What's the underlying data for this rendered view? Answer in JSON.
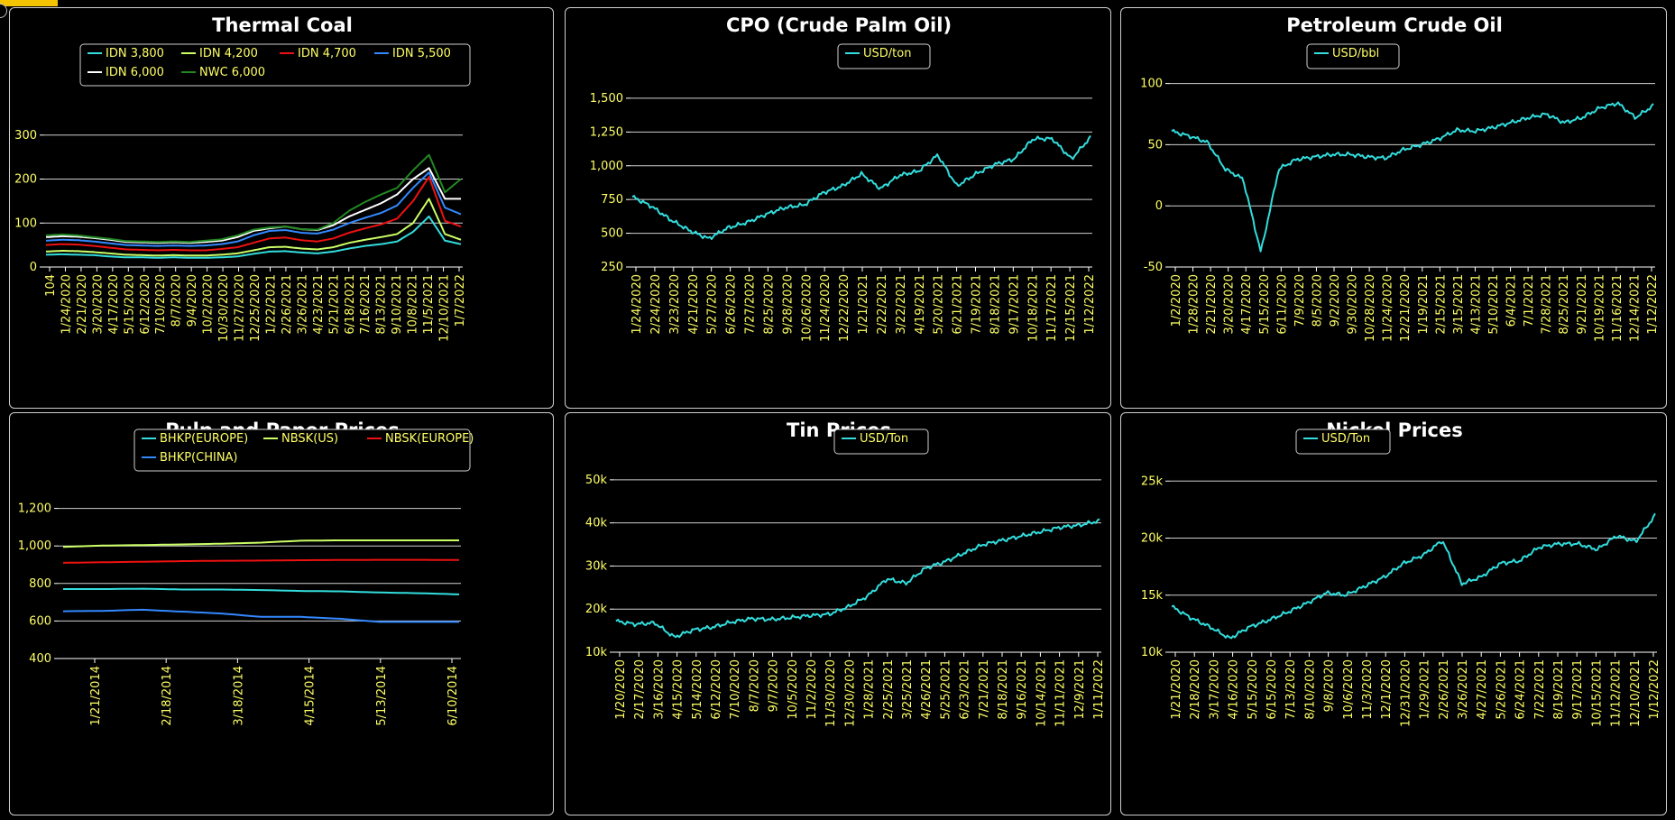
{
  "chart_data": [
    {
      "id": "coal",
      "type": "line",
      "title": "Thermal Coal",
      "ylim": [
        0,
        400
      ],
      "yticks": [
        {
          "v": 0,
          "label": "0"
        },
        {
          "v": 100,
          "label": "100"
        },
        {
          "v": 200,
          "label": "200"
        },
        {
          "v": 300,
          "label": "300"
        }
      ],
      "grid": true,
      "legend": "top-right",
      "x_tick_labels": [
        "104",
        "1/24/2020",
        "2/21/2020",
        "3/20/2020",
        "4/17/2020",
        "5/15/2020",
        "6/12/2020",
        "7/10/2020",
        "8/7/2020",
        "9/4/2020",
        "10/2/2020",
        "10/30/2020",
        "11/27/2020",
        "12/25/2020",
        "1/22/2021",
        "2/26/2021",
        "3/26/2021",
        "4/23/2021",
        "5/21/2021",
        "6/18/2021",
        "7/16/2021",
        "8/13/2021",
        "9/10/2021",
        "10/8/2021",
        "11/5/2021",
        "12/10/2021",
        "1/7/2022"
      ],
      "series": [
        {
          "name": "IDN 3,800",
          "color": "#33dddd",
          "values": [
            28,
            29,
            28,
            27,
            24,
            22,
            22,
            21,
            22,
            21,
            21,
            22,
            24,
            30,
            35,
            36,
            33,
            31,
            35,
            42,
            48,
            52,
            58,
            80,
            115,
            60,
            52
          ]
        },
        {
          "name": "IDN 4,200",
          "color": "#ccff66",
          "values": [
            35,
            37,
            36,
            34,
            31,
            28,
            27,
            26,
            27,
            26,
            26,
            28,
            31,
            38,
            45,
            46,
            42,
            40,
            45,
            55,
            62,
            68,
            75,
            100,
            155,
            75,
            62
          ]
        },
        {
          "name": "IDN 4,700",
          "color": "#ee1111",
          "values": [
            50,
            52,
            51,
            48,
            44,
            40,
            39,
            38,
            39,
            38,
            38,
            41,
            45,
            55,
            65,
            67,
            61,
            58,
            65,
            78,
            88,
            97,
            110,
            150,
            205,
            105,
            92
          ]
        },
        {
          "name": "IDN 5,500",
          "color": "#3388ff",
          "values": [
            60,
            62,
            61,
            58,
            54,
            50,
            49,
            48,
            49,
            48,
            49,
            52,
            58,
            72,
            82,
            84,
            78,
            76,
            85,
            100,
            112,
            123,
            140,
            180,
            215,
            135,
            120
          ]
        },
        {
          "name": "IDN 6,000",
          "color": "#ffffff",
          "values": [
            68,
            70,
            69,
            66,
            62,
            57,
            56,
            55,
            56,
            55,
            57,
            60,
            68,
            82,
            88,
            92,
            86,
            84,
            95,
            115,
            130,
            145,
            165,
            200,
            225,
            155,
            155
          ]
        },
        {
          "name": "NWC 6,000",
          "color": "#228822",
          "values": [
            72,
            74,
            72,
            68,
            64,
            59,
            58,
            57,
            58,
            57,
            60,
            63,
            72,
            85,
            90,
            92,
            86,
            85,
            100,
            128,
            148,
            165,
            180,
            220,
            255,
            170,
            200
          ]
        }
      ]
    },
    {
      "id": "cpo",
      "type": "line",
      "title": "CPO (Crude Palm Oil)",
      "ylim": [
        250,
        1700
      ],
      "yticks": [
        {
          "v": 250,
          "label": "250"
        },
        {
          "v": 500,
          "label": "500"
        },
        {
          "v": 750,
          "label": "750"
        },
        {
          "v": 1000,
          "label": "1,000"
        },
        {
          "v": 1250,
          "label": "1,250"
        },
        {
          "v": 1500,
          "label": "1,500"
        }
      ],
      "grid": true,
      "legend": "top-right",
      "x_tick_labels": [
        "1/24/2020",
        "2/24/2020",
        "3/23/2020",
        "4/21/2020",
        "5/27/2020",
        "6/26/2020",
        "7/27/2020",
        "8/25/2020",
        "9/28/2020",
        "10/26/2020",
        "11/24/2020",
        "12/22/2020",
        "1/21/2021",
        "2/22/2021",
        "3/22/2021",
        "4/19/2021",
        "5/20/2021",
        "6/21/2021",
        "7/19/2021",
        "8/18/2021",
        "9/17/2021",
        "10/18/2021",
        "11/17/2021",
        "12/15/2021",
        "1/12/2022"
      ],
      "series": [
        {
          "name": "USD/ton",
          "color": "#33dddd",
          "values": [
            770,
            700,
            600,
            520,
            460,
            540,
            580,
            640,
            690,
            710,
            800,
            850,
            940,
            830,
            930,
            960,
            1080,
            850,
            940,
            1010,
            1050,
            1200,
            1200,
            1050,
            1210
          ]
        }
      ]
    },
    {
      "id": "oil",
      "type": "line",
      "title": "Petroleum Crude Oil",
      "ylim": [
        -50,
        110
      ],
      "yticks": [
        {
          "v": -50,
          "label": "-50"
        },
        {
          "v": 0,
          "label": "0"
        },
        {
          "v": 50,
          "label": "50"
        },
        {
          "v": 100,
          "label": "100"
        }
      ],
      "grid": true,
      "legend": "top-right",
      "x_tick_labels": [
        "1/2/2020",
        "1/28/2020",
        "2/21/2020",
        "3/20/2020",
        "4/17/2020",
        "5/15/2020",
        "6/11/2020",
        "7/9/2020",
        "8/5/2020",
        "9/2/2020",
        "9/30/2020",
        "10/28/2020",
        "11/24/2020",
        "12/21/2020",
        "1/19/2021",
        "2/15/2021",
        "3/15/2021",
        "4/13/2021",
        "5/10/2021",
        "6/4/2021",
        "7/1/2021",
        "7/28/2021",
        "8/25/2021",
        "9/21/2021",
        "10/19/2021",
        "11/16/2021",
        "12/14/2021",
        "1/12/2022"
      ],
      "series": [
        {
          "name": "USD/bbl",
          "color": "#33dddd",
          "values": [
            61,
            57,
            52,
            30,
            22,
            -38,
            30,
            38,
            40,
            42,
            42,
            40,
            39,
            46,
            50,
            55,
            62,
            61,
            64,
            68,
            72,
            75,
            68,
            72,
            80,
            84,
            72,
            82
          ]
        }
      ]
    },
    {
      "id": "pulp",
      "type": "line",
      "title": "Pulp and Paper Prices",
      "ylim": [
        400,
        1400
      ],
      "yticks": [
        {
          "v": 400,
          "label": "400"
        },
        {
          "v": 600,
          "label": "600"
        },
        {
          "v": 800,
          "label": "800"
        },
        {
          "v": 1000,
          "label": "1,000"
        },
        {
          "v": 1200,
          "label": "1,200"
        }
      ],
      "grid": true,
      "legend": "top-right",
      "x_tick_labels": [
        "1/21/2014",
        "2/18/2014",
        "3/18/2014",
        "4/15/2014",
        "5/13/2014",
        "6/10/2014"
      ],
      "series": [
        {
          "name": "BHKP(EUROPE)",
          "color": "#33dddd",
          "values": [
            770,
            770,
            772,
            768,
            768,
            765,
            760,
            758,
            752,
            748,
            742
          ]
        },
        {
          "name": "NBSK(US)",
          "color": "#ccff66",
          "values": [
            995,
            1002,
            1005,
            1008,
            1012,
            1018,
            1028,
            1030,
            1030,
            1030,
            1030
          ]
        },
        {
          "name": "NBSK(EUROPE)",
          "color": "#ee1111",
          "values": [
            910,
            913,
            916,
            919,
            921,
            922,
            924,
            925,
            926,
            926,
            925
          ]
        },
        {
          "name": "BHKP(CHINA)",
          "color": "#3388ff",
          "values": [
            652,
            654,
            660,
            650,
            640,
            622,
            622,
            612,
            595,
            595,
            595
          ]
        }
      ]
    },
    {
      "id": "tin",
      "type": "line",
      "title": "Tin Prices",
      "ylim": [
        10000,
        55000
      ],
      "yticks": [
        {
          "v": 10000,
          "label": "10k"
        },
        {
          "v": 20000,
          "label": "20k"
        },
        {
          "v": 30000,
          "label": "30k"
        },
        {
          "v": 40000,
          "label": "40k"
        },
        {
          "v": 50000,
          "label": "50k"
        }
      ],
      "grid": true,
      "legend": "top-right",
      "x_tick_labels": [
        "1/20/2020",
        "2/17/2020",
        "3/16/2020",
        "4/15/2020",
        "5/14/2020",
        "6/12/2020",
        "7/10/2020",
        "8/7/2020",
        "9/7/2020",
        "10/5/2020",
        "11/2/2020",
        "11/30/2020",
        "12/30/2020",
        "1/28/2021",
        "2/25/2021",
        "3/25/2021",
        "4/26/2021",
        "5/25/2021",
        "6/23/2021",
        "7/21/2021",
        "8/18/2021",
        "9/16/2021",
        "10/14/2021",
        "11/11/2021",
        "12/9/2021",
        "1/11/2022"
      ],
      "series": [
        {
          "name": "USD/Ton",
          "color": "#33dddd",
          "values": [
            17200,
            16500,
            16800,
            13500,
            15200,
            15800,
            17000,
            17800,
            17600,
            18000,
            18500,
            18800,
            20500,
            23000,
            27000,
            26000,
            29500,
            31000,
            33000,
            35000,
            36000,
            37000,
            38000,
            39000,
            39500,
            40500
          ]
        }
      ]
    },
    {
      "id": "nickel",
      "type": "line",
      "title": "Nickel Prices",
      "ylim": [
        10000,
        27000
      ],
      "yticks": [
        {
          "v": 10000,
          "label": "10k"
        },
        {
          "v": 15000,
          "label": "15k"
        },
        {
          "v": 20000,
          "label": "20k"
        },
        {
          "v": 25000,
          "label": "25k"
        }
      ],
      "grid": true,
      "legend": "top-right",
      "x_tick_labels": [
        "1/21/2020",
        "2/18/2020",
        "3/17/2020",
        "4/16/2020",
        "5/15/2020",
        "6/15/2020",
        "7/13/2020",
        "8/10/2020",
        "9/8/2020",
        "10/6/2020",
        "11/3/2020",
        "12/1/2020",
        "12/31/2020",
        "1/29/2021",
        "2/26/2021",
        "3/26/2021",
        "4/27/2021",
        "5/26/2021",
        "6/24/2021",
        "7/22/2021",
        "8/19/2021",
        "9/17/2021",
        "10/15/2021",
        "11/12/2021",
        "12/10/2021",
        "1/12/2022"
      ],
      "series": [
        {
          "name": "USD/Ton",
          "color": "#33dddd",
          "values": [
            14000,
            13000,
            12200,
            11200,
            12200,
            12800,
            13500,
            14300,
            15200,
            15000,
            15800,
            16600,
            17800,
            18500,
            19800,
            16000,
            16600,
            17800,
            18000,
            19200,
            19500,
            19500,
            19000,
            20200,
            19700,
            22000
          ]
        }
      ]
    }
  ]
}
